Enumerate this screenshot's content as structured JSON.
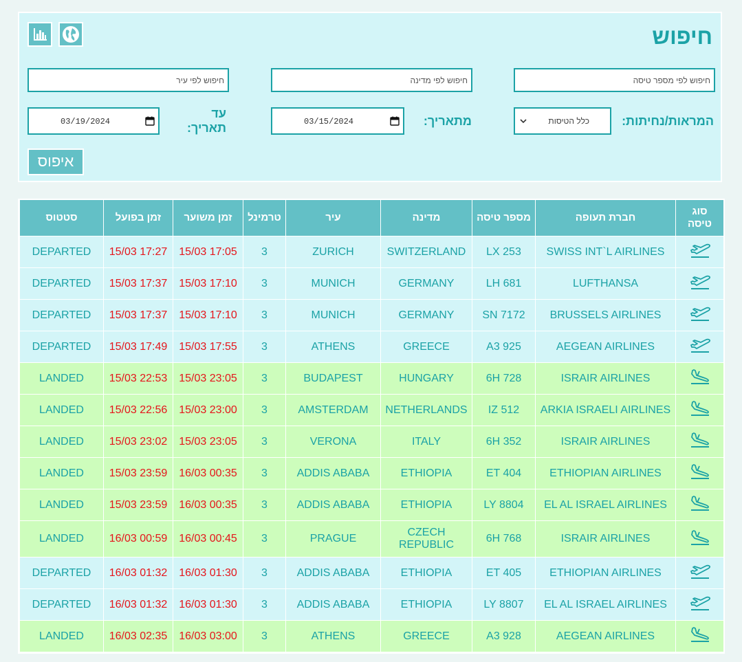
{
  "search": {
    "title": "חיפוש",
    "flight_placeholder": "חיפוש לפי מספר טיסה",
    "country_placeholder": "חיפוש לפי מדינה",
    "city_placeholder": "חיפוש לפי עיר",
    "direction_label": "המראות/נחיתות:",
    "direction_value": "כלל הטיסות",
    "from_label": "מתאריך:",
    "from_date": "03/15/2024",
    "to_label_line1": "עד",
    "to_label_line2": "תאריך:",
    "to_date": "03/19/2024",
    "reset_label": "איפוס",
    "icons": [
      "globe-icon",
      "bar-chart-icon"
    ]
  },
  "colors": {
    "accent": "#1ba2a6",
    "header_bg": "#63c0c6",
    "departed_bg": "#d3f5f8",
    "landed_bg": "#cdfdbc",
    "time_red": "#e5151b"
  },
  "table": {
    "headers": {
      "type_line1": "סוג",
      "type_line2": "טיסה",
      "airline": "חברת תעופה",
      "flight": "מספר טיסה",
      "country": "מדינה",
      "city": "עיר",
      "terminal": "טרמינל",
      "scheduled": "זמן משוער",
      "actual": "זמן בפועל",
      "status": "סטטוס"
    },
    "rows": [
      {
        "type": "departure",
        "airline": "SWISS INT`L AIRLINES",
        "flight": "LX 253",
        "country": "SWITZERLAND",
        "city": "ZURICH",
        "terminal": "3",
        "scheduled": "17:05 15/03",
        "actual": "17:27 15/03",
        "status": "DEPARTED"
      },
      {
        "type": "departure",
        "airline": "LUFTHANSA",
        "flight": "LH 681",
        "country": "GERMANY",
        "city": "MUNICH",
        "terminal": "3",
        "scheduled": "17:10 15/03",
        "actual": "17:37 15/03",
        "status": "DEPARTED"
      },
      {
        "type": "departure",
        "airline": "BRUSSELS AIRLINES",
        "flight": "SN 7172",
        "country": "GERMANY",
        "city": "MUNICH",
        "terminal": "3",
        "scheduled": "17:10 15/03",
        "actual": "17:37 15/03",
        "status": "DEPARTED"
      },
      {
        "type": "departure",
        "airline": "AEGEAN AIRLINES",
        "flight": "A3 925",
        "country": "GREECE",
        "city": "ATHENS",
        "terminal": "3",
        "scheduled": "17:55 15/03",
        "actual": "17:49 15/03",
        "status": "DEPARTED"
      },
      {
        "type": "arrival",
        "airline": "ISRAIR AIRLINES",
        "flight": "6H 728",
        "country": "HUNGARY",
        "city": "BUDAPEST",
        "terminal": "3",
        "scheduled": "23:05 15/03",
        "actual": "22:53 15/03",
        "status": "LANDED"
      },
      {
        "type": "arrival",
        "airline": "ARKIA ISRAELI AIRLINES",
        "flight": "IZ 512",
        "country": "NETHERLANDS",
        "city": "AMSTERDAM",
        "terminal": "3",
        "scheduled": "23:00 15/03",
        "actual": "22:56 15/03",
        "status": "LANDED"
      },
      {
        "type": "arrival",
        "airline": "ISRAIR AIRLINES",
        "flight": "6H 352",
        "country": "ITALY",
        "city": "VERONA",
        "terminal": "3",
        "scheduled": "23:05 15/03",
        "actual": "23:02 15/03",
        "status": "LANDED"
      },
      {
        "type": "arrival",
        "airline": "ETHIOPIAN AIRLINES",
        "flight": "ET 404",
        "country": "ETHIOPIA",
        "city": "ADDIS ABABA",
        "terminal": "3",
        "scheduled": "00:35 16/03",
        "actual": "23:59 15/03",
        "status": "LANDED"
      },
      {
        "type": "arrival",
        "airline": "EL AL ISRAEL AIRLINES",
        "flight": "LY 8804",
        "country": "ETHIOPIA",
        "city": "ADDIS ABABA",
        "terminal": "3",
        "scheduled": "00:35 16/03",
        "actual": "23:59 15/03",
        "status": "LANDED"
      },
      {
        "type": "arrival",
        "airline": "ISRAIR AIRLINES",
        "flight": "6H 768",
        "country": "CZECH REPUBLIC",
        "city": "PRAGUE",
        "terminal": "3",
        "scheduled": "00:45 16/03",
        "actual": "00:59 16/03",
        "status": "LANDED"
      },
      {
        "type": "departure",
        "airline": "ETHIOPIAN AIRLINES",
        "flight": "ET 405",
        "country": "ETHIOPIA",
        "city": "ADDIS ABABA",
        "terminal": "3",
        "scheduled": "01:30 16/03",
        "actual": "01:32 16/03",
        "status": "DEPARTED"
      },
      {
        "type": "departure",
        "airline": "EL AL ISRAEL AIRLINES",
        "flight": "LY 8807",
        "country": "ETHIOPIA",
        "city": "ADDIS ABABA",
        "terminal": "3",
        "scheduled": "01:30 16/03",
        "actual": "01:32 16/03",
        "status": "DEPARTED"
      },
      {
        "type": "arrival",
        "airline": "AEGEAN AIRLINES",
        "flight": "A3 928",
        "country": "GREECE",
        "city": "ATHENS",
        "terminal": "3",
        "scheduled": "03:00 16/03",
        "actual": "02:35 16/03",
        "status": "LANDED"
      }
    ]
  }
}
